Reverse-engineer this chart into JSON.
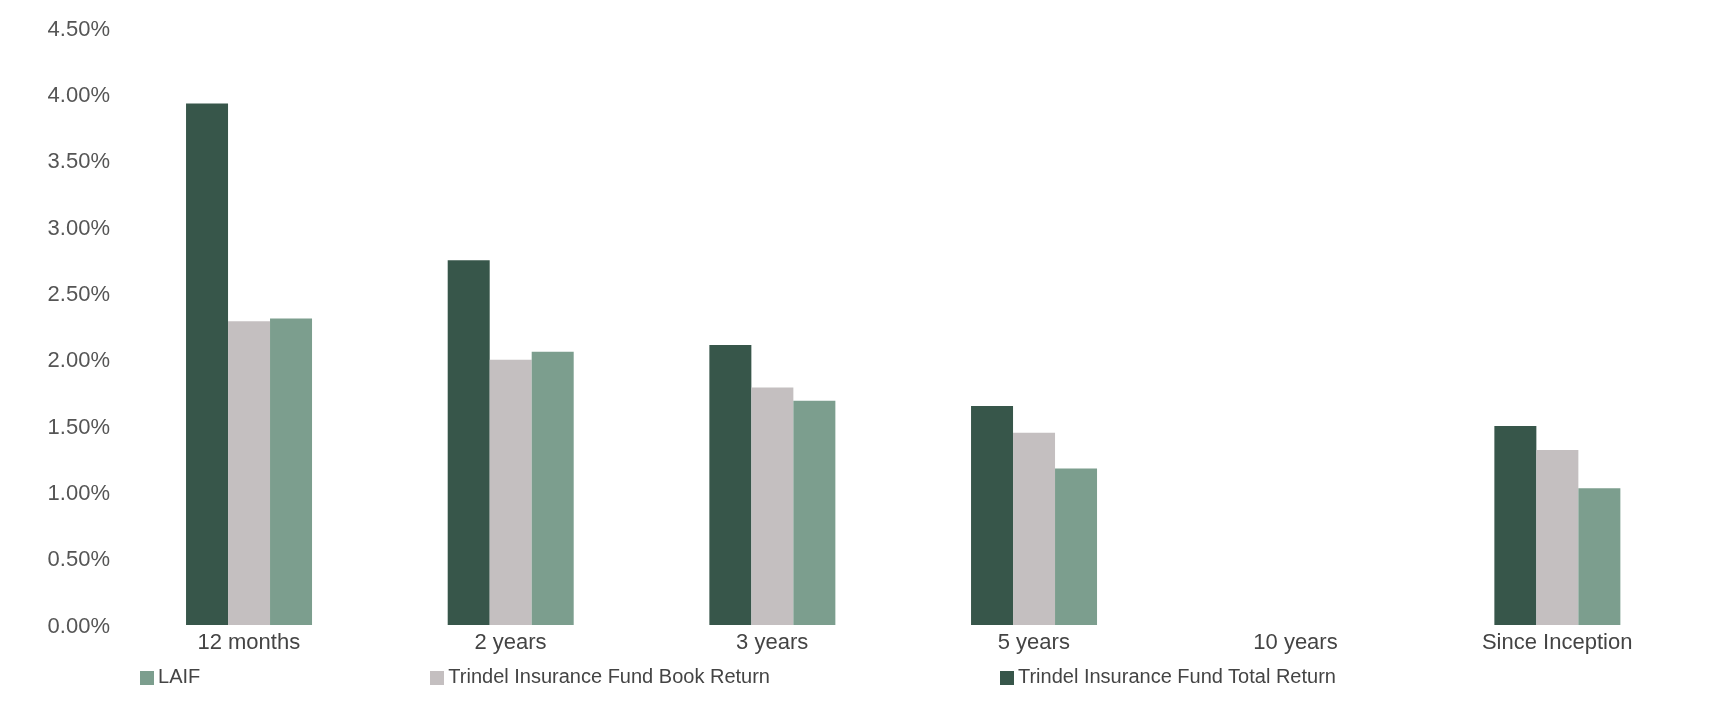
{
  "chart_data": {
    "type": "bar",
    "categories": [
      "12 months",
      "2 years",
      "3 years",
      "5 years",
      "10 years",
      "Since Inception"
    ],
    "series": [
      {
        "name": "Trindel Insurance Fund Total Return",
        "color": "#37564a",
        "values": [
          3.93,
          2.75,
          2.11,
          1.65,
          null,
          1.5
        ]
      },
      {
        "name": "Trindel Insurance Fund Book Return",
        "color": "#c4bfc0",
        "values": [
          2.29,
          2.0,
          1.79,
          1.45,
          null,
          1.32
        ]
      },
      {
        "name": "LAIF",
        "color": "#7c9e8e",
        "values": [
          2.31,
          2.06,
          1.69,
          1.18,
          null,
          1.03
        ]
      }
    ],
    "ylim": [
      0,
      4.5
    ],
    "yticks": [
      {
        "value": 0,
        "label": "0.00%"
      },
      {
        "value": 0.5,
        "label": "0.50%"
      },
      {
        "value": 1,
        "label": "1.00%"
      },
      {
        "value": 1.5,
        "label": "1.50%"
      },
      {
        "value": 2,
        "label": "2.00%"
      },
      {
        "value": 2.5,
        "label": "2.50%"
      },
      {
        "value": 3,
        "label": "3.00%"
      },
      {
        "value": 3.5,
        "label": "3.50%"
      },
      {
        "value": 4,
        "label": "4.00%"
      },
      {
        "value": 4.5,
        "label": "4.50%"
      }
    ],
    "grid": false,
    "legend": "bottom"
  }
}
